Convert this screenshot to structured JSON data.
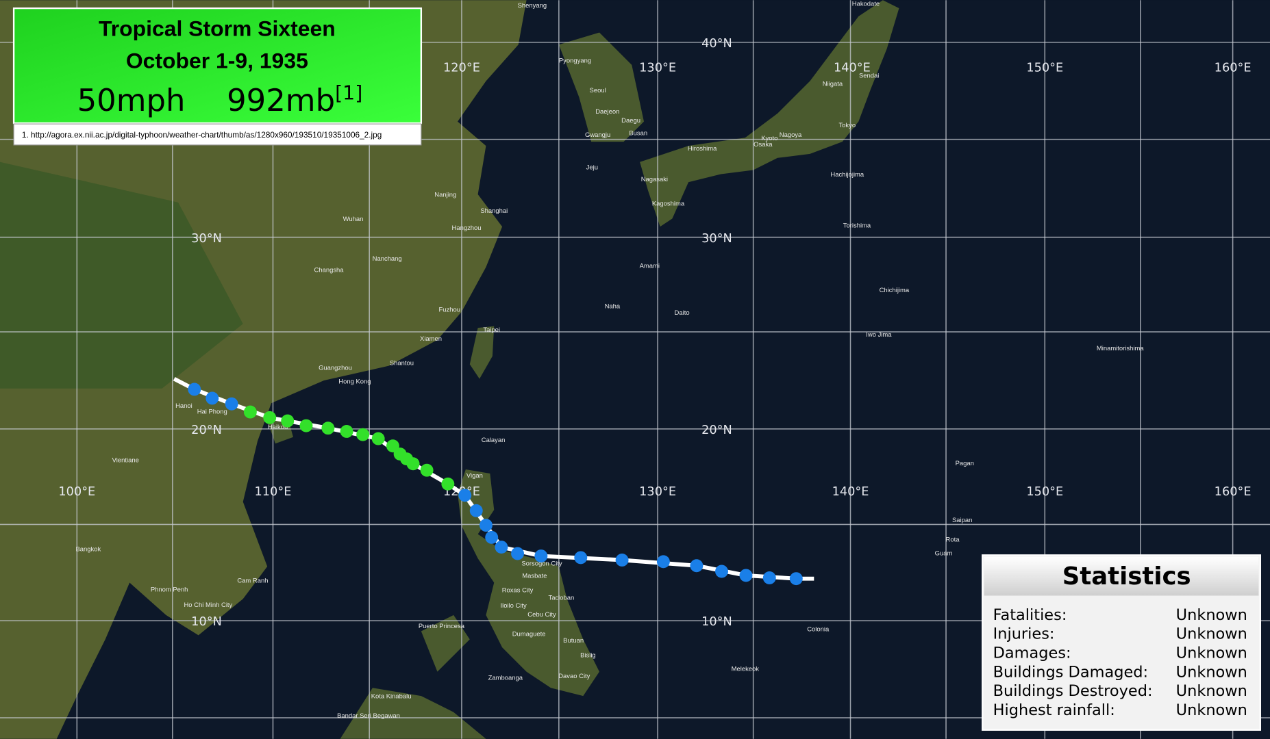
{
  "header": {
    "title": "Tropical Storm Sixteen",
    "dates": "October 1-9, 1935",
    "wind": "50mph",
    "pressure": "992mb",
    "ref_marker": "[1]"
  },
  "reference": "1. http://agora.ex.nii.ac.jp/digital-typhoon/weather-chart/thumb/as/1280x960/193510/19351006_2.jpg",
  "grid": {
    "lat_labels_west": [
      "30°N",
      "20°N",
      "10°N"
    ],
    "lat_labels_east": [
      "40°N",
      "30°N",
      "20°N",
      "10°N"
    ],
    "lon_labels_north": [
      "120°E",
      "130°E",
      "140°E",
      "150°E",
      "160°E"
    ],
    "lon_labels_south": [
      "100°E",
      "110°E",
      "120°E",
      "130°E",
      "140°E",
      "150°E",
      "160°E"
    ]
  },
  "places": [
    "Shenyang",
    "Pyongyang",
    "Seoul",
    "Daejeon",
    "Daegu",
    "Busan",
    "Gwangju",
    "Jeju",
    "Hiroshima",
    "Osaka",
    "Nagoya",
    "Kyoto",
    "Tokyo",
    "Niigata",
    "Sendai",
    "Hakodate",
    "Kagoshima",
    "Nagasaki",
    "Amami",
    "Naha",
    "Daito",
    "Shanghai",
    "Nanjing",
    "Hangzhou",
    "Wuhan",
    "Changsha",
    "Nanchang",
    "Fuzhou",
    "Xiamen",
    "Taipei",
    "Shantou",
    "Guangzhou",
    "Hong Kong",
    "Hanoi",
    "Hai Phong",
    "Haikou",
    "Vientiane",
    "Bangkok",
    "Phnom Penh",
    "Ho Chi Minh City",
    "Cam Ranh",
    "Calayan",
    "Vigan",
    "Sorsogon City",
    "Masbate",
    "Roxas City",
    "Iloilo City",
    "Cebu City",
    "Tacloban",
    "Puerto Princesa",
    "Dumaguete",
    "Butuan",
    "Bislig",
    "Zamboanga",
    "Davao City",
    "Kota Kinabalu",
    "Bandar Seri Begawan",
    "Guam",
    "Saipan",
    "Rota",
    "Pagan",
    "Colonia",
    "Melekeok",
    "Iwo Jima",
    "Minamitorishima",
    "Chichijima",
    "Hachijojima",
    "Torishima"
  ],
  "statistics": {
    "title": "Statistics",
    "rows": [
      [
        "Fatalities:",
        "Unknown"
      ],
      [
        "Injuries:",
        "Unknown"
      ],
      [
        "Damages:",
        "Unknown"
      ],
      [
        "Buildings Damaged:",
        "Unknown"
      ],
      [
        "Buildings Destroyed:",
        "Unknown"
      ],
      [
        "Highest rainfall:",
        "Unknown"
      ]
    ]
  }
}
